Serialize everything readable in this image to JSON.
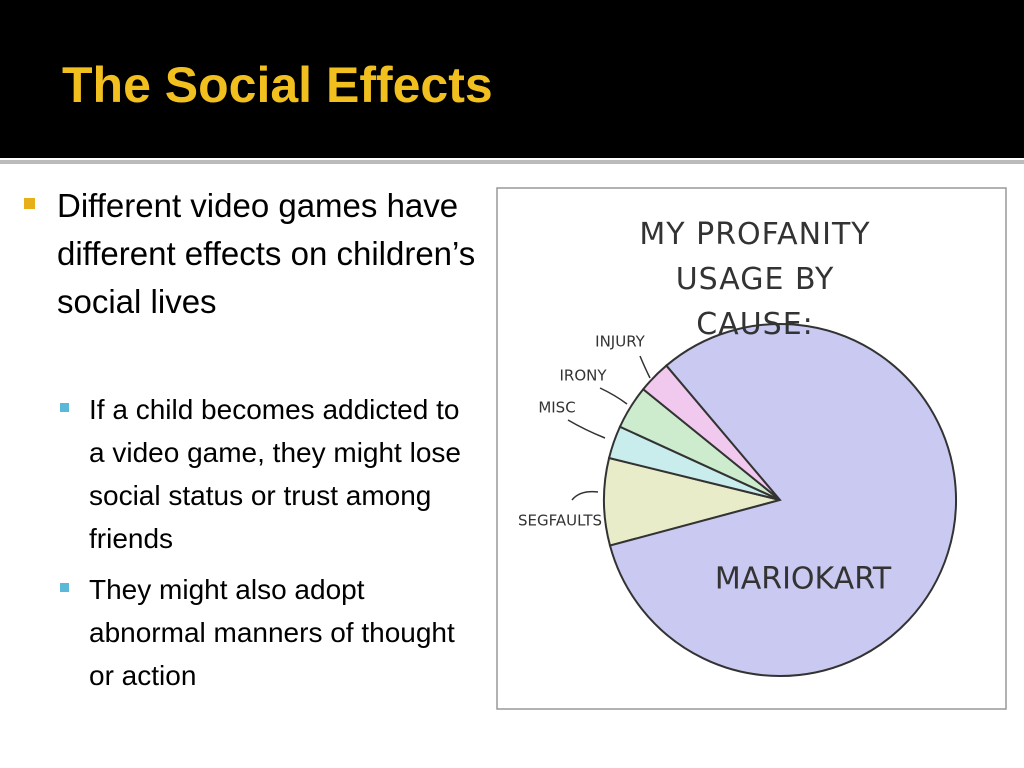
{
  "title": "The Social Effects",
  "bullets": [
    {
      "text": "Different video games have different effects on children’s social lives",
      "sub": [
        "If a child becomes addicted to a video game, they might lose social status or trust among friends",
        "They might also adopt abnormal manners of thought or action"
      ]
    }
  ],
  "chart_data": {
    "type": "pie",
    "title": "MY PROFANITY USAGE BY CAUSE:",
    "categories": [
      "SEGFAULTS",
      "MISC",
      "IRONY",
      "INJURY",
      "MARIOKART"
    ],
    "values": [
      8,
      3,
      4,
      3,
      82
    ],
    "colors": [
      "#e9ecc9",
      "#c9ecec",
      "#cdeccd",
      "#f1c9ee",
      "#c9c9f1"
    ]
  }
}
